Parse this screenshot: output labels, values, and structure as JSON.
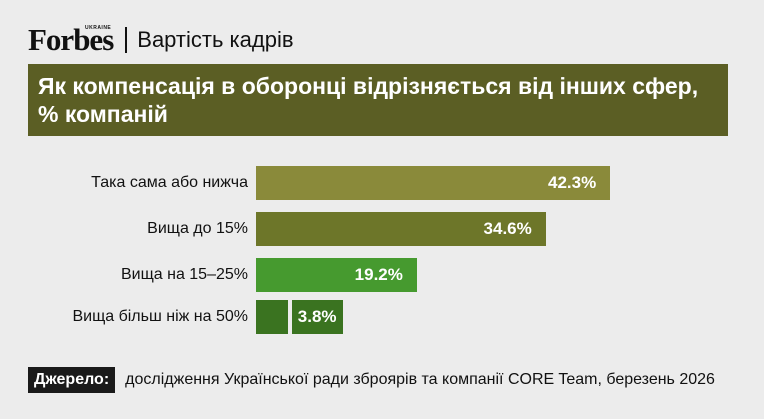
{
  "header": {
    "logo": "Forbes",
    "logo_sub": "UKRAINE",
    "section": "Вартість кадрів"
  },
  "colors": {
    "title_bg": "#5b5e24",
    "bars": [
      "#8a8a3a",
      "#6d7629",
      "#469a2f",
      "#3a7320"
    ]
  },
  "chart_data": {
    "type": "bar",
    "orientation": "horizontal",
    "title": "Як компенсація в оборонці відрізняється від інших сфер, % компаній",
    "categories": [
      "Така сама або нижча",
      "Вища до 15%",
      "Вища на 15–25%",
      "Вища більш ніж на 50%"
    ],
    "values": [
      42.3,
      34.6,
      19.2,
      3.8
    ],
    "value_labels": [
      "42.3%",
      "34.6%",
      "19.2%",
      "3.8%"
    ],
    "xlim": [
      0,
      50
    ],
    "grid": false,
    "legend": "none"
  },
  "source": {
    "label": "Джерело:",
    "text": "дослідження Української ради зброярів та компанії CORE Team, березень 2026"
  }
}
